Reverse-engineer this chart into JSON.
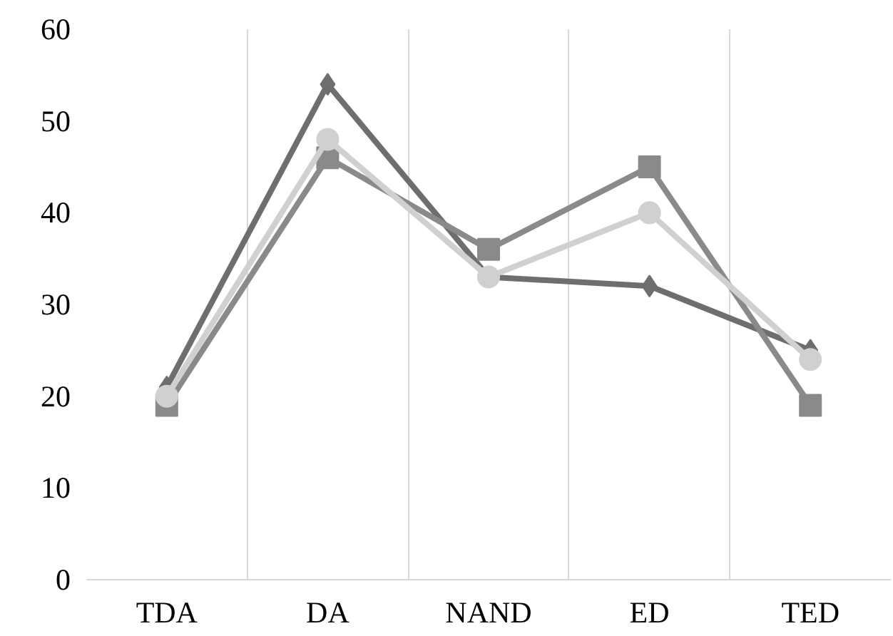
{
  "chart_data": {
    "type": "line",
    "categories": [
      "TDA",
      "DA",
      "NAND",
      "ED",
      "TED"
    ],
    "series": [
      {
        "color": "#6e6e6e",
        "marker": "diamond",
        "values": [
          21,
          54,
          33,
          32,
          25
        ]
      },
      {
        "color": "#8a8a8a",
        "marker": "square",
        "values": [
          19,
          46,
          36,
          45,
          19
        ]
      },
      {
        "color": "#d0d0d0",
        "marker": "circle",
        "values": [
          20,
          48,
          33,
          40,
          24
        ]
      }
    ],
    "ylim": [
      0,
      60
    ],
    "yticks": [
      0,
      10,
      20,
      30,
      40,
      50,
      60
    ],
    "grid": "x",
    "line_style": "solid"
  }
}
